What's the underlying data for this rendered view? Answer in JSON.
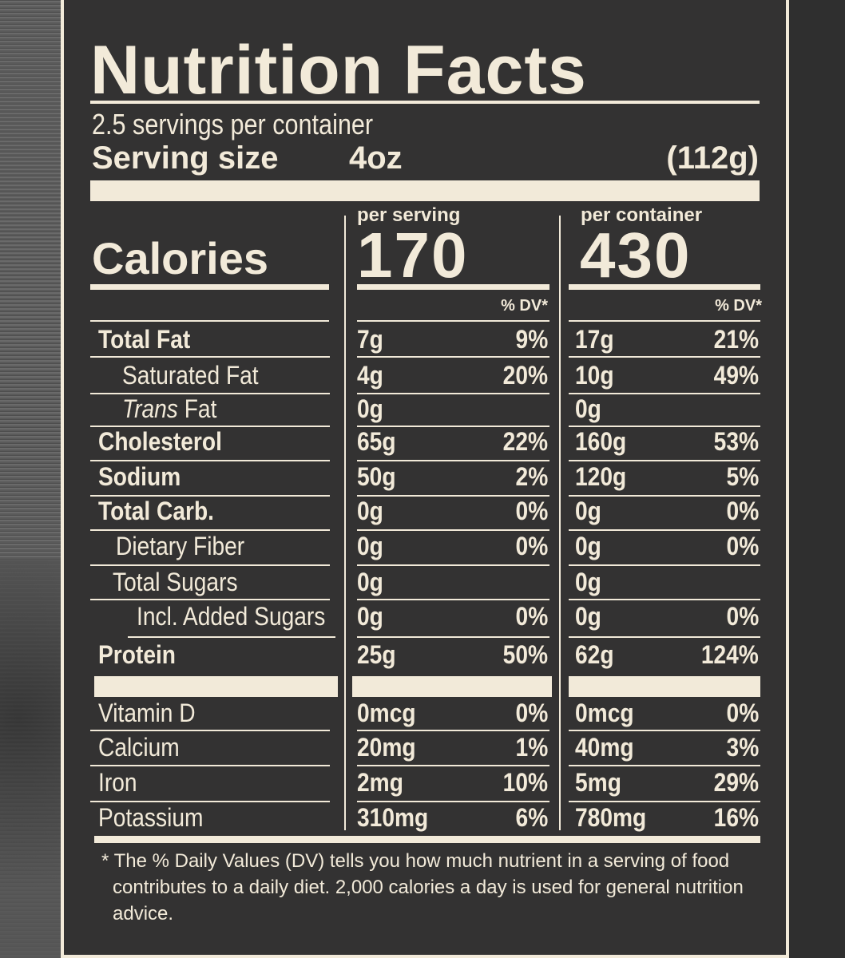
{
  "label": {
    "title": "Nutrition Facts",
    "servings_per_container": "2.5 servings per container",
    "serving_size_label": "Serving size",
    "serving_size_value": "4oz",
    "serving_size_grams": "(112g)",
    "calories_label": "Calories",
    "per_serving_label": "per serving",
    "per_container_label": "per container",
    "calories_per_serving": "170",
    "calories_per_container": "430",
    "dv_header": "% DV*",
    "nutrients": [
      {
        "name": "Total Fat",
        "ps": "7g",
        "ps_dv": "9%",
        "pc": "17g",
        "pc_dv": "21%"
      },
      {
        "name": "Saturated Fat",
        "ps": "4g",
        "ps_dv": "20%",
        "pc": "10g",
        "pc_dv": "49%"
      },
      {
        "name_italic": "Trans",
        "name": " Fat",
        "ps": "0g",
        "ps_dv": "",
        "pc": "0g",
        "pc_dv": ""
      },
      {
        "name": "Cholesterol",
        "ps": "65g",
        "ps_dv": "22%",
        "pc": "160g",
        "pc_dv": "53%"
      },
      {
        "name": "Sodium",
        "ps": "50g",
        "ps_dv": "2%",
        "pc": "120g",
        "pc_dv": "5%"
      },
      {
        "name": "Total Carb.",
        "ps": "0g",
        "ps_dv": "0%",
        "pc": "0g",
        "pc_dv": "0%"
      },
      {
        "name": "Dietary Fiber",
        "ps": "0g",
        "ps_dv": "0%",
        "pc": "0g",
        "pc_dv": "0%"
      },
      {
        "name": "Total Sugars",
        "ps": "0g",
        "ps_dv": "",
        "pc": "0g",
        "pc_dv": ""
      },
      {
        "name": "Incl. Added Sugars",
        "ps": "0g",
        "ps_dv": "0%",
        "pc": "0g",
        "pc_dv": "0%"
      },
      {
        "name": "Protein",
        "ps": "25g",
        "ps_dv": "50%",
        "pc": "62g",
        "pc_dv": "124%"
      }
    ],
    "vitamins": [
      {
        "name": "Vitamin D",
        "ps": "0mcg",
        "ps_dv": "0%",
        "pc": "0mcg",
        "pc_dv": "0%"
      },
      {
        "name": "Calcium",
        "ps": "20mg",
        "ps_dv": "1%",
        "pc": "40mg",
        "pc_dv": "3%"
      },
      {
        "name": "Iron",
        "ps": "2mg",
        "ps_dv": "10%",
        "pc": "5mg",
        "pc_dv": "29%"
      },
      {
        "name": "Potassium",
        "ps": "310mg",
        "ps_dv": "6%",
        "pc": "780mg",
        "pc_dv": "16%"
      }
    ],
    "footnote": "* The % Daily Values (DV) tells you how much nutrient in a serving of food contributes to a daily diet. 2,000 calories a day is used for general nutrition advice.",
    "colors": {
      "background": "#333232",
      "ink": "#f2ead9"
    }
  }
}
